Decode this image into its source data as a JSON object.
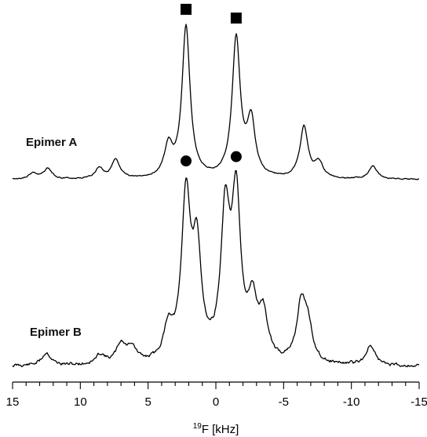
{
  "chart_data": {
    "type": "line",
    "xlabel_sup": "19",
    "xlabel": "F [kHz]",
    "xlim": [
      15,
      -15
    ],
    "x_ticks": [
      15,
      10,
      5,
      0,
      -5,
      -10,
      -15
    ],
    "x_tick_labels": [
      "15",
      "10",
      "5",
      "0",
      "-5",
      "-10",
      "-15"
    ],
    "x_reversed": true,
    "series": [
      {
        "name": "Epimer A",
        "marker": "square",
        "marked_peaks_kHz": [
          2.2,
          -1.5
        ],
        "baseline": 0,
        "peaks": [
          {
            "x": 13.5,
            "y": 0.04
          },
          {
            "x": 12.4,
            "y": 0.07
          },
          {
            "x": 8.6,
            "y": 0.07
          },
          {
            "x": 7.4,
            "y": 0.12
          },
          {
            "x": 3.5,
            "y": 0.2
          },
          {
            "x": 2.2,
            "y": 1.0
          },
          {
            "x": -1.5,
            "y": 0.92
          },
          {
            "x": -2.6,
            "y": 0.37
          },
          {
            "x": -6.5,
            "y": 0.34
          },
          {
            "x": -7.6,
            "y": 0.1
          },
          {
            "x": -11.6,
            "y": 0.09
          }
        ]
      },
      {
        "name": "Epimer B",
        "marker": "circle",
        "marked_peaks_kHz": [
          2.2,
          -1.5
        ],
        "baseline": 0,
        "peaks": [
          {
            "x": 12.5,
            "y": 0.08
          },
          {
            "x": 8.5,
            "y": 0.06
          },
          {
            "x": 7.0,
            "y": 0.12
          },
          {
            "x": 6.2,
            "y": 0.1
          },
          {
            "x": 3.5,
            "y": 0.2
          },
          {
            "x": 2.2,
            "y": 1.0
          },
          {
            "x": 1.4,
            "y": 0.64
          },
          {
            "x": -0.7,
            "y": 0.87
          },
          {
            "x": -1.5,
            "y": 0.96
          },
          {
            "x": -2.7,
            "y": 0.33
          },
          {
            "x": -3.5,
            "y": 0.27
          },
          {
            "x": -6.3,
            "y": 0.35
          },
          {
            "x": -6.8,
            "y": 0.2
          },
          {
            "x": -11.4,
            "y": 0.12
          }
        ]
      }
    ],
    "grid": false,
    "legend": "none"
  }
}
